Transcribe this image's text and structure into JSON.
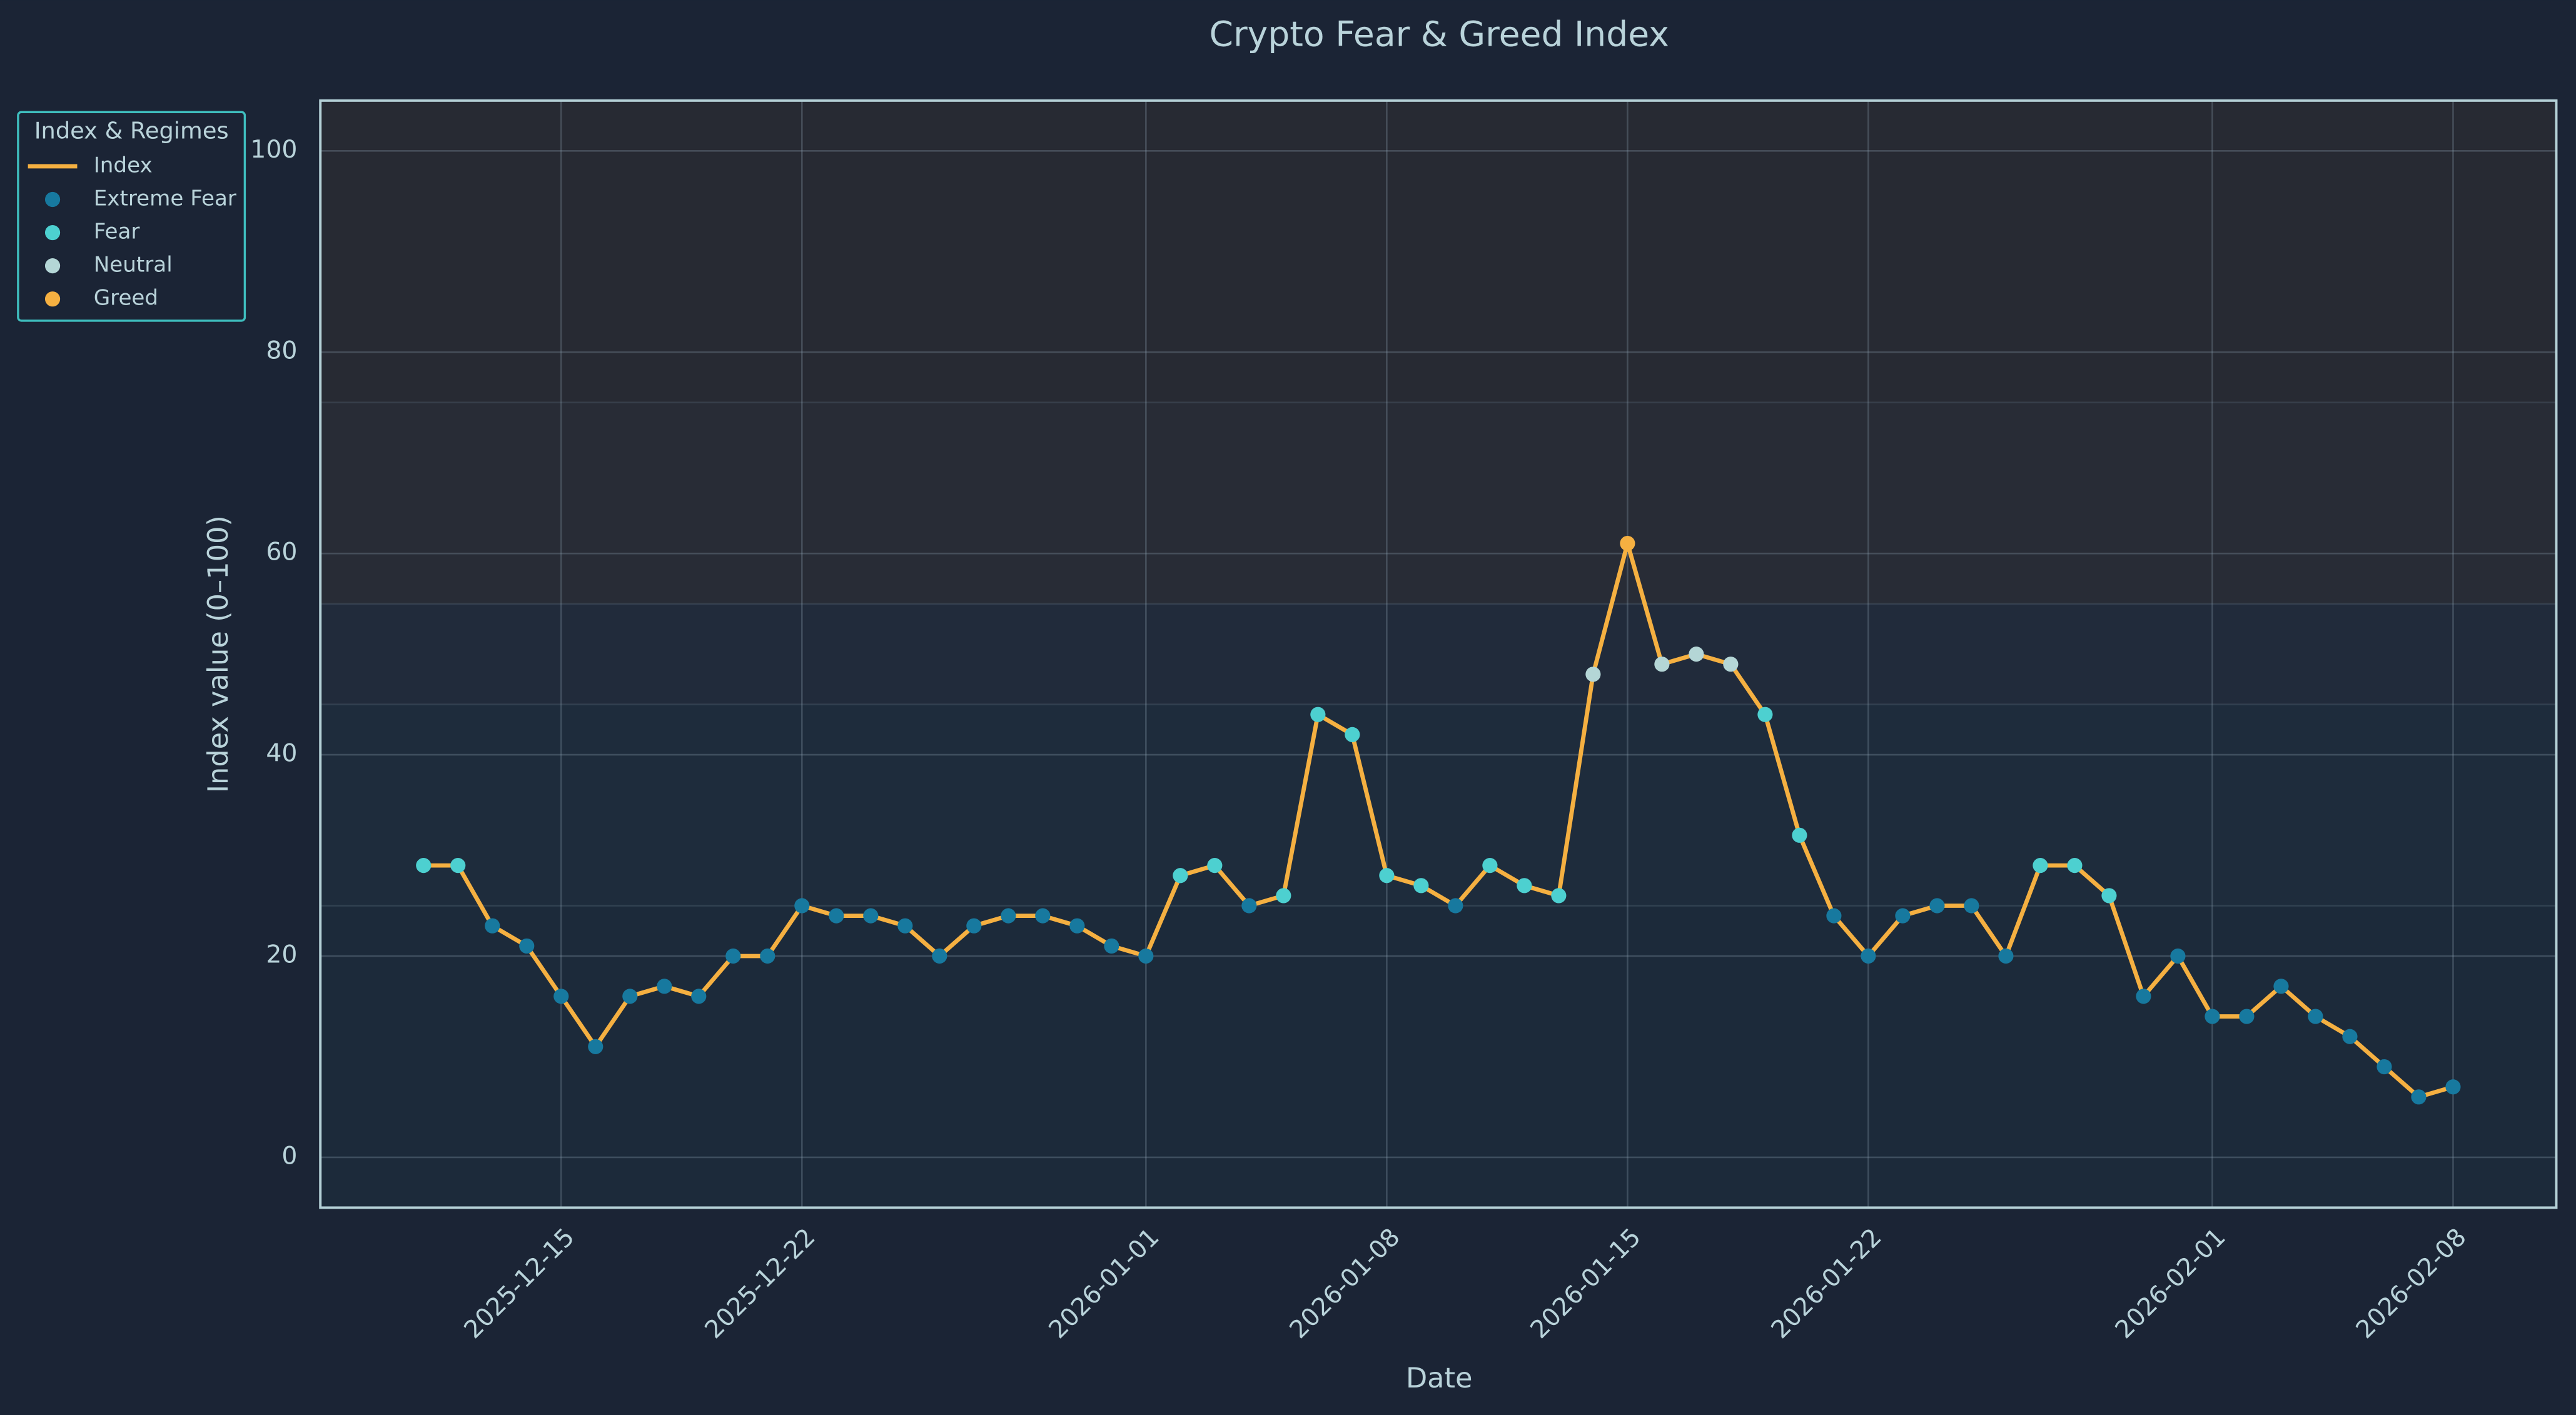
{
  "chart_data": {
    "type": "line",
    "title": "Crypto Fear & Greed Index",
    "x_label": "Date",
    "y_label": "Index value (0–100)",
    "x": [
      "2025-12-11",
      "2025-12-12",
      "2025-12-13",
      "2025-12-14",
      "2025-12-15",
      "2025-12-16",
      "2025-12-17",
      "2025-12-18",
      "2025-12-19",
      "2025-12-20",
      "2025-12-21",
      "2025-12-22",
      "2025-12-23",
      "2025-12-24",
      "2025-12-25",
      "2025-12-26",
      "2025-12-27",
      "2025-12-28",
      "2025-12-29",
      "2025-12-30",
      "2025-12-31",
      "2026-01-01",
      "2026-01-02",
      "2026-01-03",
      "2026-01-04",
      "2026-01-05",
      "2026-01-06",
      "2026-01-07",
      "2026-01-08",
      "2026-01-09",
      "2026-01-10",
      "2026-01-11",
      "2026-01-12",
      "2026-01-13",
      "2026-01-14",
      "2026-01-15",
      "2026-01-16",
      "2026-01-17",
      "2026-01-18",
      "2026-01-19",
      "2026-01-20",
      "2026-01-21",
      "2026-01-22",
      "2026-01-23",
      "2026-01-24",
      "2026-01-25",
      "2026-01-26",
      "2026-01-27",
      "2026-01-28",
      "2026-01-29",
      "2026-01-30",
      "2026-01-31",
      "2026-02-01",
      "2026-02-02",
      "2026-02-03",
      "2026-02-04",
      "2026-02-05",
      "2026-02-06",
      "2026-02-07",
      "2026-02-08"
    ],
    "series": [
      {
        "name": "Index",
        "kind": "line",
        "color": "#f5b041",
        "values": [
          29,
          29,
          23,
          21,
          16,
          11,
          16,
          17,
          16,
          20,
          20,
          25,
          24,
          24,
          23,
          20,
          23,
          24,
          24,
          23,
          21,
          20,
          28,
          29,
          25,
          26,
          44,
          42,
          28,
          27,
          25,
          29,
          27,
          26,
          48,
          61,
          49,
          50,
          49,
          44,
          32,
          24,
          20,
          24,
          25,
          25,
          20,
          29,
          29,
          26,
          16,
          20,
          14,
          14,
          17,
          14,
          12,
          9,
          6,
          7
        ]
      },
      {
        "name": "Extreme Fear",
        "kind": "scatter",
        "color": "#17799f",
        "values": [
          null,
          null,
          23,
          21,
          16,
          11,
          16,
          17,
          16,
          20,
          20,
          25,
          24,
          24,
          23,
          20,
          23,
          24,
          24,
          23,
          21,
          20,
          null,
          null,
          25,
          null,
          null,
          null,
          null,
          null,
          25,
          null,
          null,
          null,
          null,
          null,
          null,
          null,
          null,
          null,
          null,
          24,
          20,
          24,
          25,
          25,
          20,
          null,
          null,
          null,
          16,
          20,
          14,
          14,
          17,
          14,
          12,
          9,
          6,
          7
        ]
      },
      {
        "name": "Fear",
        "kind": "scatter",
        "color": "#4dd0d0",
        "values": [
          29,
          29,
          null,
          null,
          null,
          null,
          null,
          null,
          null,
          null,
          null,
          null,
          null,
          null,
          null,
          null,
          null,
          null,
          null,
          null,
          null,
          null,
          28,
          29,
          null,
          26,
          44,
          42,
          28,
          27,
          null,
          29,
          27,
          26,
          null,
          null,
          null,
          null,
          null,
          44,
          32,
          null,
          null,
          null,
          null,
          null,
          null,
          29,
          29,
          26,
          null,
          null,
          null,
          null,
          null,
          null,
          null,
          null,
          null,
          null
        ]
      },
      {
        "name": "Neutral",
        "kind": "scatter",
        "color": "#b4d6d6",
        "values": [
          null,
          null,
          null,
          null,
          null,
          null,
          null,
          null,
          null,
          null,
          null,
          null,
          null,
          null,
          null,
          null,
          null,
          null,
          null,
          null,
          null,
          null,
          null,
          null,
          null,
          null,
          null,
          null,
          null,
          null,
          null,
          null,
          null,
          null,
          48,
          null,
          49,
          50,
          49,
          null,
          null,
          null,
          null,
          null,
          null,
          null,
          null,
          null,
          null,
          null,
          null,
          null,
          null,
          null,
          null,
          null,
          null,
          null,
          null,
          null
        ]
      },
      {
        "name": "Greed",
        "kind": "scatter",
        "color": "#f5b041",
        "values": [
          null,
          null,
          null,
          null,
          null,
          null,
          null,
          null,
          null,
          null,
          null,
          null,
          null,
          null,
          null,
          null,
          null,
          null,
          null,
          null,
          null,
          null,
          null,
          null,
          null,
          null,
          null,
          null,
          null,
          null,
          null,
          null,
          null,
          null,
          null,
          61,
          null,
          null,
          null,
          null,
          null,
          null,
          null,
          null,
          null,
          null,
          null,
          null,
          null,
          null,
          null,
          null,
          null,
          null,
          null,
          null,
          null,
          null,
          null,
          null
        ]
      }
    ],
    "legend_title": "Index & Regimes",
    "legend": "upper left outside",
    "bands": [
      {
        "from": 0,
        "to": 25,
        "color": "#1c2a3a"
      },
      {
        "from": 25,
        "to": 45,
        "color": "#1e2c3c"
      },
      {
        "from": 45,
        "to": 55,
        "color": "#212b3b"
      },
      {
        "from": 55,
        "to": 75,
        "color": "#282c36"
      },
      {
        "from": 75,
        "to": 100,
        "color": "#272a33"
      }
    ],
    "xlim": [
      "2025-12-08",
      "2026-02-11"
    ],
    "xticks": [
      "2025-12-15",
      "2025-12-22",
      "2026-01-01",
      "2026-01-08",
      "2026-01-15",
      "2026-01-22",
      "2026-02-01",
      "2026-02-08"
    ],
    "ylim": [
      -5,
      105
    ],
    "yticks": [
      0,
      20,
      40,
      60,
      80,
      100
    ],
    "grid": true
  }
}
